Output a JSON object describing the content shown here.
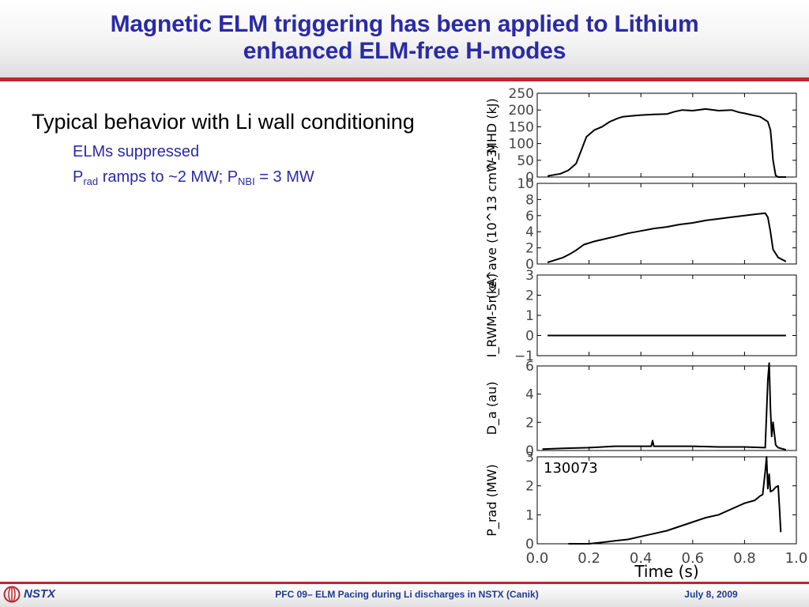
{
  "slide": {
    "title_line1": "Magnetic ELM triggering has been applied to Lithium",
    "title_line2": "enhanced ELM-free H-modes",
    "bullet_main": "Typical behavior with Li wall conditioning",
    "sub1": "ELMs suppressed",
    "sub2_p": "P",
    "sub2_rad": "rad",
    "sub2_mid": " ramps to ~2 MW; P",
    "sub2_nbi": "NBI",
    "sub2_end": " = 3 MW"
  },
  "footer": {
    "logo": "NSTX",
    "center": "PFC 09– ELM Pacing during Li discharges in NSTX (Canik)",
    "date": "July 8, 2009"
  },
  "chart_data": {
    "type": "line",
    "shot": "130073",
    "xlabel": "Time (s)",
    "xlim": [
      0.0,
      1.0
    ],
    "xticks": [
      "0.0",
      "0.2",
      "0.4",
      "0.6",
      "0.8",
      "1.0"
    ],
    "panels": [
      {
        "ylabel": "W_MHD (kJ)",
        "ylim": [
          0,
          250
        ],
        "yticks": [
          "0",
          "50",
          "100",
          "150",
          "200",
          "250"
        ],
        "x": [
          0.04,
          0.09,
          0.12,
          0.15,
          0.17,
          0.19,
          0.22,
          0.25,
          0.28,
          0.31,
          0.33,
          0.36,
          0.4,
          0.45,
          0.5,
          0.53,
          0.56,
          0.6,
          0.65,
          0.7,
          0.75,
          0.78,
          0.8,
          0.83,
          0.86,
          0.88,
          0.89,
          0.9,
          0.905,
          0.91,
          0.92,
          0.93,
          0.96
        ],
        "y": [
          3,
          10,
          20,
          40,
          80,
          120,
          140,
          150,
          165,
          175,
          180,
          182,
          185,
          187,
          188,
          195,
          200,
          198,
          203,
          198,
          200,
          193,
          190,
          185,
          180,
          170,
          165,
          140,
          100,
          50,
          5,
          0,
          0
        ]
      },
      {
        "ylabel": "n_e^ave (10^13 cm^-3)",
        "ylim": [
          0,
          10
        ],
        "yticks": [
          "0",
          "2",
          "4",
          "6",
          "8",
          "10"
        ],
        "x": [
          0.04,
          0.06,
          0.1,
          0.13,
          0.15,
          0.18,
          0.22,
          0.26,
          0.3,
          0.35,
          0.4,
          0.45,
          0.5,
          0.55,
          0.6,
          0.65,
          0.7,
          0.75,
          0.8,
          0.85,
          0.88,
          0.89,
          0.9,
          0.91,
          0.93,
          0.96
        ],
        "y": [
          0.2,
          0.4,
          0.8,
          1.3,
          1.7,
          2.4,
          2.8,
          3.1,
          3.4,
          3.8,
          4.1,
          4.4,
          4.6,
          4.9,
          5.1,
          5.4,
          5.6,
          5.8,
          6.0,
          6.2,
          6.3,
          5.8,
          4.0,
          1.8,
          0.8,
          0.3
        ]
      },
      {
        "ylabel": "I_RWM-5 (kA)",
        "ylim": [
          -1,
          3
        ],
        "yticks": [
          "-1",
          "0",
          "1",
          "2",
          "3"
        ],
        "x": [
          0.04,
          0.96
        ],
        "y": [
          0.0,
          0.0
        ]
      },
      {
        "ylabel": "D_a (au)",
        "ylim": [
          0,
          6
        ],
        "yticks": [
          "0",
          "2",
          "4",
          "6"
        ],
        "x": [
          0.02,
          0.1,
          0.2,
          0.3,
          0.4,
          0.44,
          0.445,
          0.45,
          0.5,
          0.6,
          0.7,
          0.8,
          0.88,
          0.89,
          0.895,
          0.9,
          0.905,
          0.91,
          0.92,
          0.93,
          0.95,
          0.96
        ],
        "y": [
          0.1,
          0.15,
          0.2,
          0.3,
          0.3,
          0.3,
          0.7,
          0.3,
          0.3,
          0.3,
          0.25,
          0.25,
          0.2,
          5.0,
          6.2,
          3.0,
          1.0,
          2.0,
          0.4,
          0.2,
          0.1,
          0.05
        ]
      },
      {
        "ylabel": "P_rad (MW)",
        "ylim": [
          0,
          3
        ],
        "yticks": [
          "0",
          "1",
          "2",
          "3"
        ],
        "x": [
          0.12,
          0.2,
          0.25,
          0.3,
          0.35,
          0.4,
          0.45,
          0.5,
          0.55,
          0.6,
          0.65,
          0.7,
          0.75,
          0.8,
          0.84,
          0.86,
          0.87,
          0.88,
          0.885,
          0.89,
          0.895,
          0.9,
          0.91,
          0.92,
          0.93,
          0.935,
          0.94
        ],
        "y": [
          0.0,
          0.0,
          0.05,
          0.1,
          0.15,
          0.25,
          0.35,
          0.45,
          0.6,
          0.75,
          0.9,
          1.0,
          1.2,
          1.4,
          1.5,
          1.65,
          1.7,
          2.5,
          3.0,
          1.9,
          2.4,
          1.8,
          1.85,
          1.95,
          2.0,
          1.2,
          0.4
        ]
      }
    ]
  }
}
